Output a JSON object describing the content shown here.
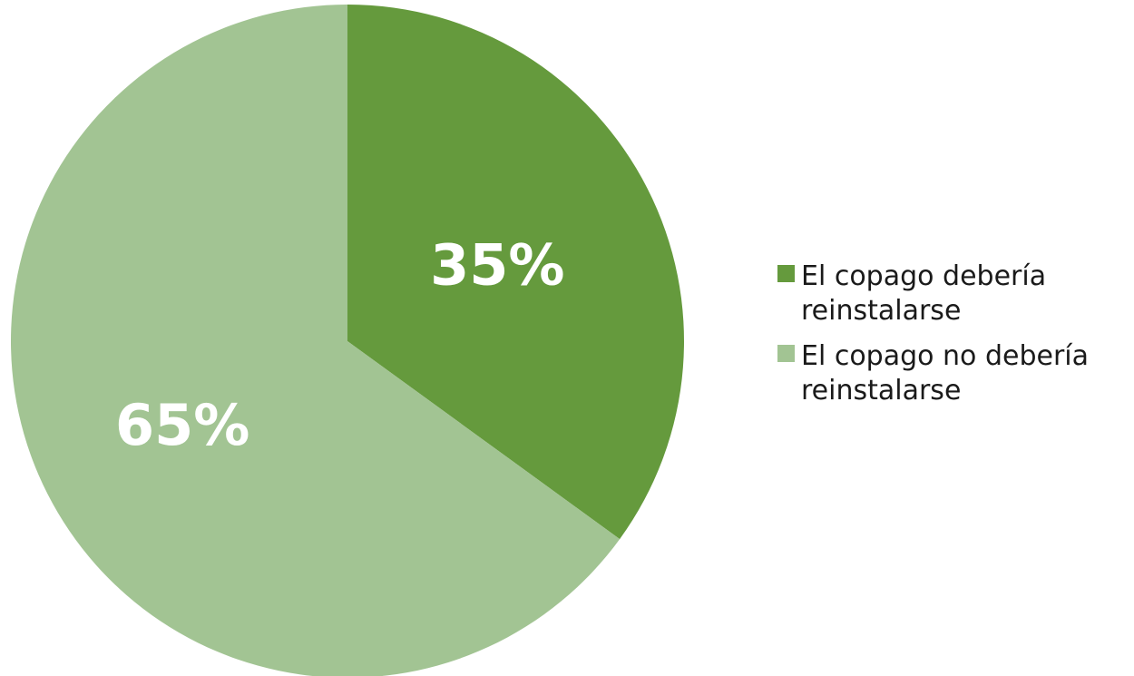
{
  "chart_data": {
    "type": "pie",
    "categories": [
      "El copago debería reinstalarse",
      "El copago no debería reinstalarse"
    ],
    "values": [
      35,
      65
    ],
    "data_labels": [
      "35%",
      "65%"
    ],
    "colors": [
      "#659a3d",
      "#a2c493"
    ],
    "legend_position": "right",
    "start_angle": "top, clockwise"
  }
}
